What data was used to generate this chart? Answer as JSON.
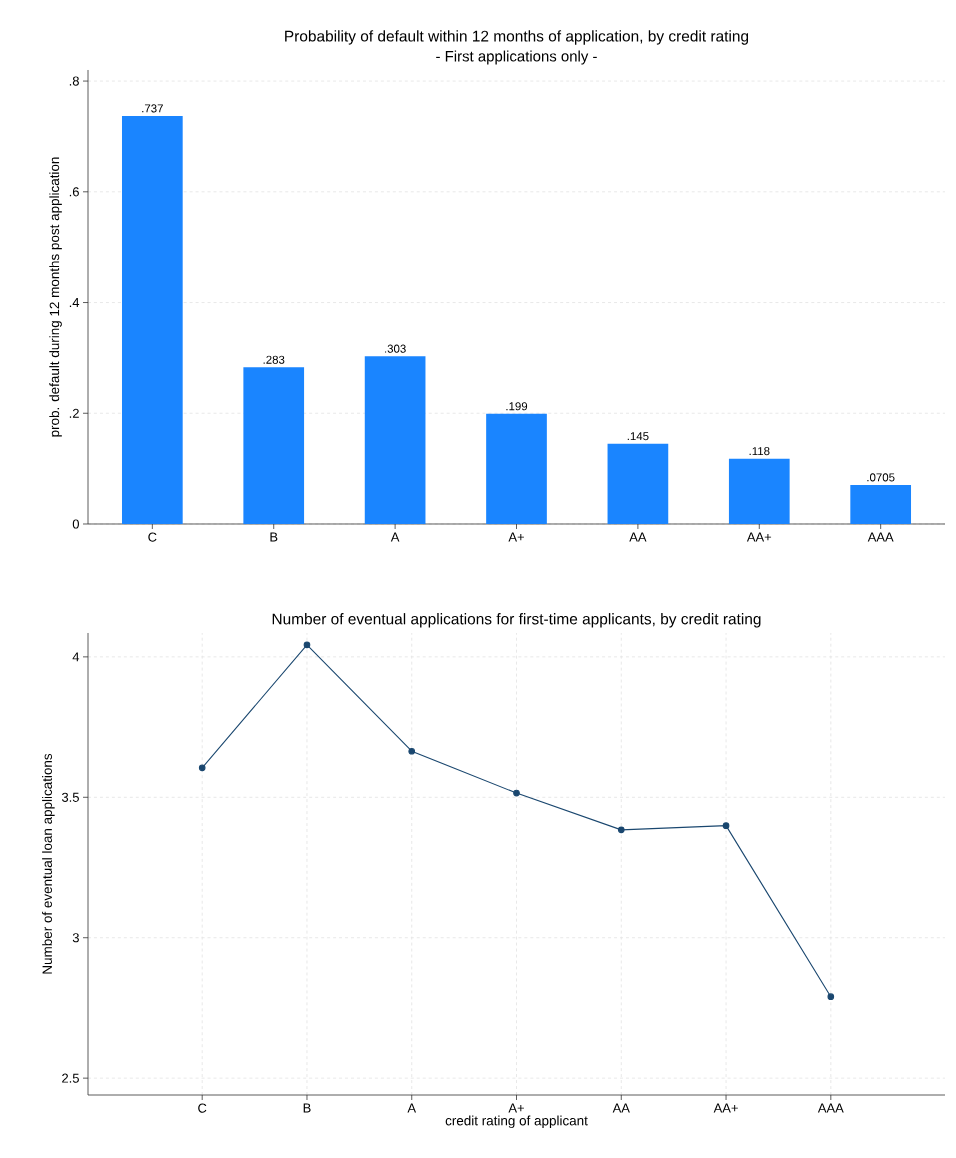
{
  "chart_data": [
    {
      "type": "bar",
      "title": "Probability of default within 12 months of application, by credit rating",
      "subtitle": "- First applications only -",
      "ylabel": "prob. default during 12 months post application",
      "categories": [
        "C",
        "B",
        "A",
        "A+",
        "AA",
        "AA+",
        "AAA"
      ],
      "values": [
        0.737,
        0.283,
        0.303,
        0.199,
        0.145,
        0.118,
        0.0705
      ],
      "value_labels": [
        ".737",
        ".283",
        ".303",
        ".199",
        ".145",
        ".118",
        ".0705"
      ],
      "color": "#1a85ff",
      "ylim": [
        0,
        0.82
      ],
      "yticks": [
        0,
        {
          "value": 0.2,
          "label": ".2"
        },
        {
          "value": 0.4,
          "label": ".4"
        },
        {
          "value": 0.6,
          "label": ".6"
        },
        {
          "value": 0.8,
          "label": ".8"
        }
      ],
      "grid": "y"
    },
    {
      "type": "line",
      "title": "Number of eventual applications for first-time applicants, by credit rating",
      "xlabel": "credit rating of applicant",
      "ylabel": "Number of eventual loan applications",
      "categories": [
        "C",
        "B",
        "A",
        "A+",
        "AA",
        "AA+",
        "AAA"
      ],
      "values": [
        3.605,
        4.043,
        3.664,
        3.515,
        3.384,
        3.399,
        2.79
      ],
      "color": "#1a476f",
      "marker": "circle",
      "line_style": "solid",
      "ylim": [
        2.44,
        4.085
      ],
      "yticks": [
        2.5,
        3,
        3.5,
        4
      ],
      "grid": true
    }
  ]
}
